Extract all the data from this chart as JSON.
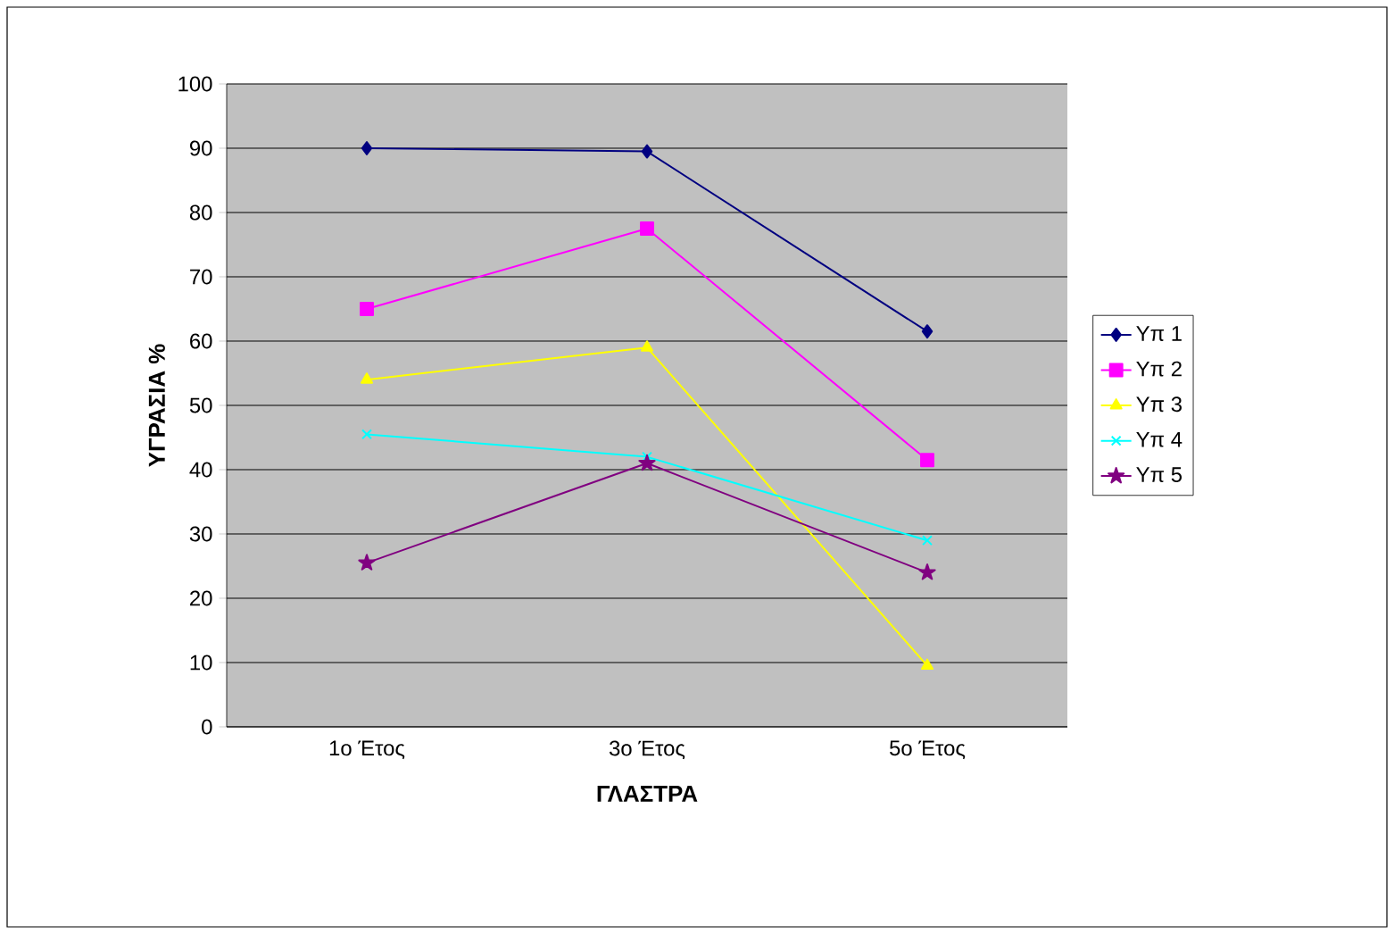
{
  "chart_data": {
    "type": "line",
    "xlabel": "ΓΛΑΣΤΡΑ",
    "ylabel": "ΥΓΡΑΣΙΑ %",
    "categories": [
      "1ο Έτος",
      "3ο Έτος",
      "5ο Έτος"
    ],
    "series": [
      {
        "name": "Υπ 1",
        "color": "#000080",
        "marker": "diamond",
        "values": [
          90,
          89.5,
          61.5
        ]
      },
      {
        "name": "Υπ 2",
        "color": "#ff00ff",
        "marker": "square",
        "values": [
          65,
          77.5,
          41.5
        ]
      },
      {
        "name": "Υπ 3",
        "color": "#ffff00",
        "marker": "triangle",
        "values": [
          54,
          59,
          9.5
        ]
      },
      {
        "name": "Υπ 4",
        "color": "#00ffff",
        "marker": "cross",
        "values": [
          45.5,
          42,
          29
        ]
      },
      {
        "name": "Υπ 5",
        "color": "#800080",
        "marker": "star",
        "values": [
          25.5,
          41,
          24
        ]
      }
    ],
    "ylim": [
      0,
      100
    ],
    "yticks": [
      0,
      10,
      20,
      30,
      40,
      50,
      60,
      70,
      80,
      90,
      100
    ],
    "grid": "y",
    "legend": "right"
  }
}
